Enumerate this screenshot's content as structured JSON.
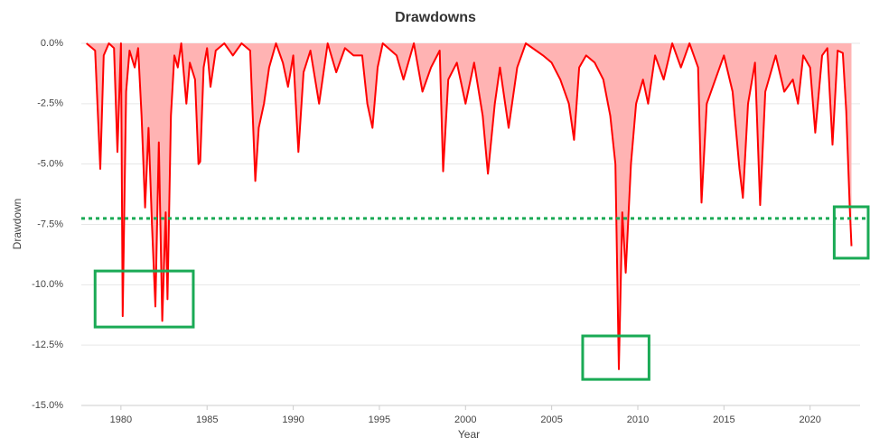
{
  "chart_data": {
    "type": "area",
    "title": "Drawdowns",
    "xlabel": "Year",
    "ylabel": "Drawdown",
    "xlim": [
      1977.7,
      2022.9
    ],
    "ylim": [
      -15,
      0
    ],
    "xticks": [
      1980,
      1985,
      1990,
      1995,
      2000,
      2005,
      2010,
      2015,
      2020
    ],
    "yticks": [
      {
        "value": 0,
        "label": "0.0%"
      },
      {
        "value": -2.5,
        "label": "-2.5%"
      },
      {
        "value": -5,
        "label": "-5.0%"
      },
      {
        "value": -7.5,
        "label": "-7.5%"
      },
      {
        "value": -10,
        "label": "-10.0%"
      },
      {
        "value": -12.5,
        "label": "-12.5%"
      },
      {
        "value": -15,
        "label": "-15.0%"
      }
    ],
    "grid": true,
    "x": [
      1978.0,
      1978.5,
      1978.8,
      1979.0,
      1979.3,
      1979.6,
      1979.8,
      1980.0,
      1980.1,
      1980.3,
      1980.5,
      1980.8,
      1981.0,
      1981.2,
      1981.4,
      1981.6,
      1981.8,
      1982.0,
      1982.2,
      1982.4,
      1982.6,
      1982.7,
      1982.9,
      1983.1,
      1983.3,
      1983.5,
      1983.8,
      1984.0,
      1984.3,
      1984.5,
      1984.6,
      1984.8,
      1985.0,
      1985.2,
      1985.5,
      1986.0,
      1986.5,
      1987.0,
      1987.5,
      1987.8,
      1988.0,
      1988.3,
      1988.6,
      1989.0,
      1989.4,
      1989.7,
      1990.0,
      1990.3,
      1990.6,
      1991.0,
      1991.5,
      1992.0,
      1992.5,
      1993.0,
      1993.5,
      1994.0,
      1994.3,
      1994.6,
      1994.9,
      1995.2,
      1996.0,
      1996.4,
      1997.0,
      1997.5,
      1998.0,
      1998.5,
      1998.7,
      1999.0,
      1999.5,
      2000.0,
      2000.5,
      2001.0,
      2001.3,
      2001.7,
      2002.0,
      2002.5,
      2003.0,
      2003.5,
      2004.5,
      2005.0,
      2005.5,
      2006.0,
      2006.3,
      2006.6,
      2007.0,
      2007.5,
      2008.0,
      2008.4,
      2008.7,
      2008.9,
      2009.1,
      2009.3,
      2009.6,
      2009.9,
      2010.3,
      2010.6,
      2011.0,
      2011.5,
      2012.0,
      2012.5,
      2013.0,
      2013.5,
      2013.7,
      2014.0,
      2014.5,
      2015.0,
      2015.5,
      2015.9,
      2016.1,
      2016.4,
      2016.8,
      2017.1,
      2017.4,
      2018.0,
      2018.5,
      2019.0,
      2019.3,
      2019.6,
      2020.0,
      2020.3,
      2020.7,
      2021.0,
      2021.3,
      2021.6,
      2021.9,
      2022.1,
      2022.3,
      2022.4
    ],
    "series": [
      {
        "color": "#ff0000",
        "fill": "#ffb3b3",
        "values": [
          0,
          -0.3,
          -5.2,
          -0.5,
          0,
          -0.2,
          -4.5,
          0,
          -11.3,
          -2,
          -0.3,
          -1.0,
          -0.2,
          -3,
          -6.8,
          -3.5,
          -7.5,
          -10.9,
          -4.1,
          -11.5,
          -7.0,
          -10.6,
          -3,
          -0.5,
          -1,
          0,
          -2.5,
          -0.8,
          -1.5,
          -5,
          -4.9,
          -1.0,
          -0.2,
          -1.8,
          -0.3,
          0,
          -0.5,
          0,
          -0.3,
          -5.7,
          -3.5,
          -2.5,
          -1,
          0,
          -0.8,
          -1.8,
          -0.5,
          -4.5,
          -1.2,
          -0.3,
          -2.5,
          0,
          -1.2,
          -0.2,
          -0.5,
          -0.5,
          -2.5,
          -3.5,
          -1,
          0,
          -0.5,
          -1.5,
          0,
          -2.0,
          -1,
          -0.3,
          -5.3,
          -1.5,
          -0.8,
          -2.5,
          -0.8,
          -3,
          -5.4,
          -2.5,
          -1,
          -3.5,
          -1,
          0,
          -0.5,
          -0.8,
          -1.5,
          -2.5,
          -4,
          -1,
          -0.5,
          -0.8,
          -1.5,
          -3,
          -5,
          -13.5,
          -7,
          -9.5,
          -5,
          -2.5,
          -1.5,
          -2.5,
          -0.5,
          -1.5,
          0,
          -1,
          0,
          -1,
          -6.6,
          -2.5,
          -1.5,
          -0.5,
          -2,
          -5.2,
          -6.4,
          -2.5,
          -0.8,
          -6.7,
          -2,
          -0.5,
          -2,
          -1.5,
          -2.5,
          -0.5,
          -1,
          -3.7,
          -0.5,
          -0.2,
          -4.2,
          -0.3,
          -0.4,
          -2.8,
          -6.8,
          -8.4
        ]
      }
    ],
    "reference_line": {
      "value": -7.25,
      "color": "#1aaa55"
    },
    "highlights": [
      {
        "xlim": [
          1978.5,
          1984.2
        ],
        "ylim": [
          -11.75,
          -9.43
        ],
        "color": "#1aaa55"
      },
      {
        "xlim": [
          2006.8,
          2010.65
        ],
        "ylim": [
          -13.92,
          -12.12
        ],
        "color": "#1aaa55"
      },
      {
        "xlim": [
          2021.4,
          2023.4
        ],
        "ylim": [
          -8.9,
          -6.77
        ],
        "color": "#1aaa55"
      }
    ]
  }
}
